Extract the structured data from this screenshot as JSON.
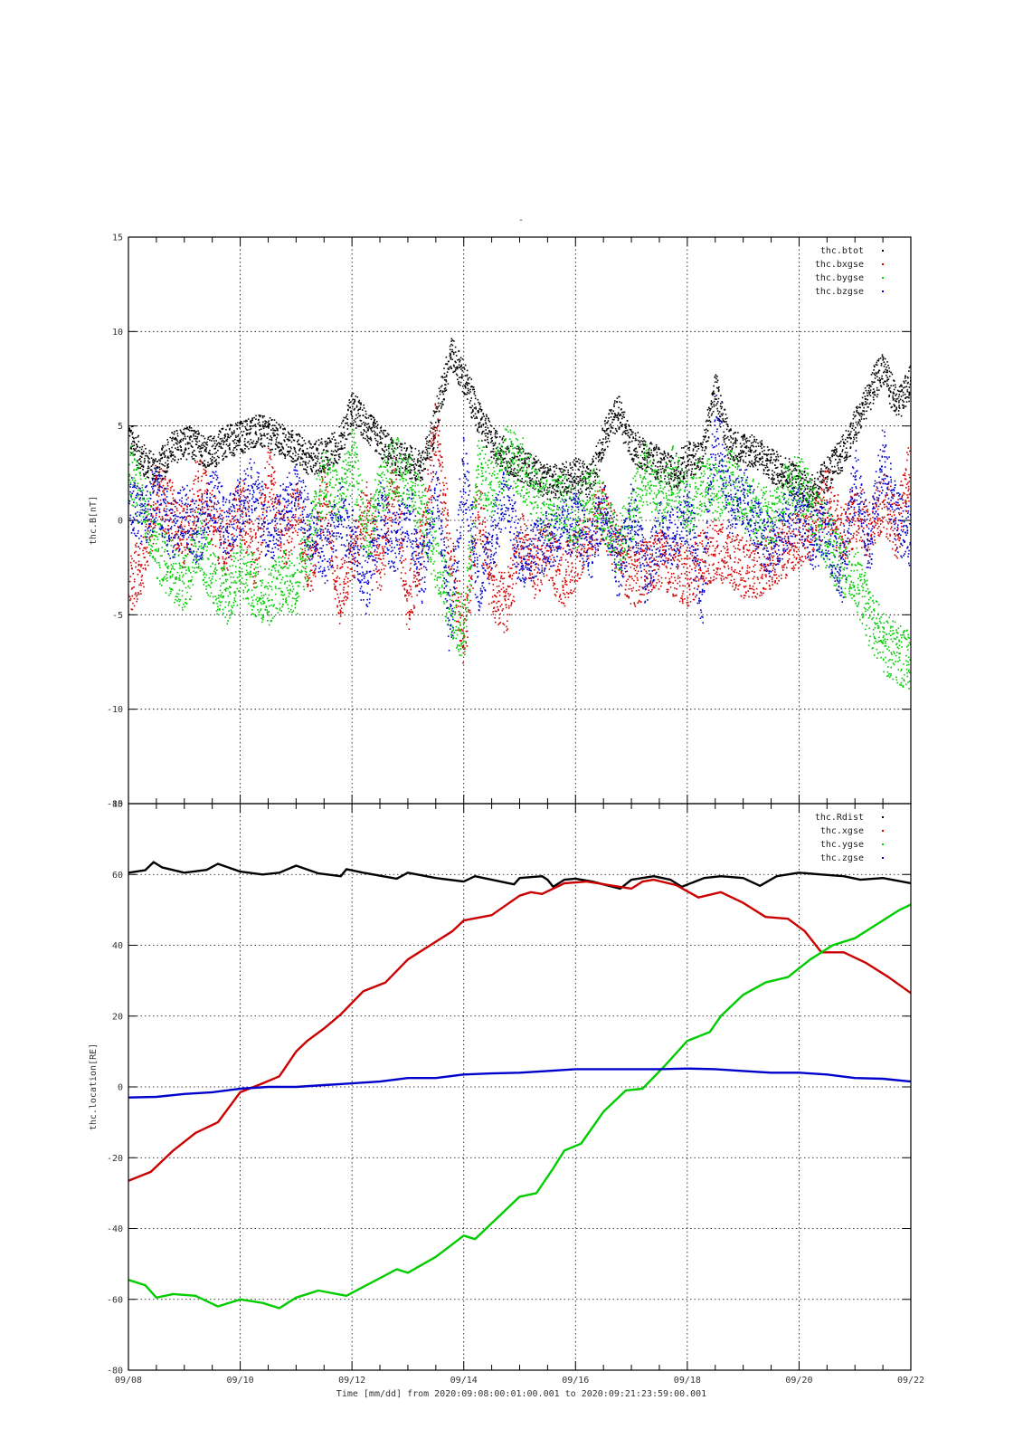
{
  "chart_data": [
    {
      "type": "scatter",
      "title": "-",
      "ylabel": "thc.B[nT]",
      "ylim": [
        -15,
        15
      ],
      "yticks": [
        -15,
        -10,
        -5,
        0,
        5,
        10,
        15
      ],
      "grid": true,
      "legend_placement": "top-right",
      "x_unit": "days since 09/08",
      "series": [
        {
          "name": "thc.btot",
          "color": "#000000",
          "x": [
            0,
            0.25,
            0.5,
            0.75,
            1,
            1.25,
            1.5,
            1.75,
            2,
            2.25,
            2.5,
            2.75,
            3,
            3.25,
            3.5,
            3.75,
            4,
            4.25,
            4.5,
            4.75,
            5,
            5.25,
            5.5,
            5.75,
            6,
            6.25,
            6.5,
            6.75,
            7,
            7.25,
            7.5,
            7.75,
            8,
            8.25,
            8.5,
            8.75,
            9,
            9.25,
            9.5,
            9.75,
            10,
            10.25,
            10.5,
            10.75,
            11,
            11.25,
            11.5,
            11.75,
            12,
            12.25,
            12.5,
            12.75,
            13,
            13.25,
            13.5,
            13.75,
            14
          ],
          "values": [
            4.5,
            3.2,
            2.6,
            3.8,
            4.2,
            3.9,
            3.6,
            4.3,
            4.4,
            4.8,
            4.6,
            4.2,
            3.8,
            3.3,
            3.5,
            4.0,
            6.0,
            5.0,
            4.2,
            3.3,
            3.2,
            2.8,
            5.4,
            9.0,
            7.5,
            5.5,
            4.2,
            3.4,
            3.0,
            2.6,
            2.0,
            2.2,
            2.5,
            2.0,
            4.5,
            5.8,
            4.0,
            3.5,
            3.0,
            2.5,
            3.3,
            3.4,
            7.0,
            4.0,
            3.8,
            3.6,
            2.9,
            2.6,
            2.0,
            1.5,
            2.5,
            3.5,
            5.0,
            6.8,
            8.2,
            6.0,
            7.5
          ]
        },
        {
          "name": "thc.bxgse",
          "color": "#d00000",
          "x": [
            0,
            0.25,
            0.5,
            0.75,
            1,
            1.25,
            1.5,
            1.75,
            2,
            2.25,
            2.5,
            2.75,
            3,
            3.25,
            3.5,
            3.75,
            4,
            4.25,
            4.5,
            4.75,
            5,
            5.25,
            5.5,
            5.75,
            6,
            6.25,
            6.5,
            6.75,
            7,
            7.25,
            7.5,
            7.75,
            8,
            8.25,
            8.5,
            8.75,
            9,
            9.25,
            9.5,
            9.75,
            10,
            10.25,
            10.5,
            10.75,
            11,
            11.25,
            11.5,
            11.75,
            12,
            12.25,
            12.5,
            12.75,
            13,
            13.25,
            13.5,
            13.75,
            14
          ],
          "values": [
            -3.5,
            -2.0,
            1.5,
            0.5,
            -1.0,
            2.0,
            0.0,
            -1.5,
            1.0,
            -2.0,
            2.5,
            -1.0,
            0.5,
            -2.5,
            1.5,
            -4.0,
            -2.0,
            1.0,
            -2.5,
            2.0,
            -4.5,
            -1.0,
            5.0,
            -2.0,
            -6.0,
            1.0,
            -3.5,
            -4.5,
            -1.0,
            -2.5,
            -1.5,
            -3.0,
            -2.0,
            -0.5,
            0.5,
            -1.5,
            -3.0,
            -2.5,
            -2.0,
            -2.5,
            -3.0,
            -2.0,
            -1.5,
            -2.0,
            -2.5,
            -2.5,
            -2.0,
            -1.5,
            -1.0,
            -0.5,
            1.5,
            -1.0,
            0.5,
            -0.5,
            1.0,
            -0.5,
            3.0
          ]
        },
        {
          "name": "thc.bygse",
          "color": "#00cc00",
          "x": [
            0,
            0.25,
            0.5,
            0.75,
            1,
            1.25,
            1.5,
            1.75,
            2,
            2.25,
            2.5,
            2.75,
            3,
            3.25,
            3.5,
            3.75,
            4,
            4.25,
            4.5,
            4.75,
            5,
            5.25,
            5.5,
            5.75,
            6,
            6.25,
            6.5,
            6.75,
            7,
            7.25,
            7.5,
            7.75,
            8,
            8.25,
            8.5,
            8.75,
            9,
            9.25,
            9.5,
            9.75,
            10,
            10.25,
            10.5,
            10.75,
            11,
            11.25,
            11.5,
            11.75,
            12,
            12.25,
            12.5,
            12.75,
            13,
            13.25,
            13.5,
            13.75,
            14
          ],
          "values": [
            2.5,
            1.0,
            -1.5,
            -2.5,
            -3.5,
            -1.0,
            -3.0,
            -4.0,
            -2.5,
            -3.5,
            -4.0,
            -3.0,
            -3.5,
            -1.0,
            2.5,
            1.0,
            3.5,
            -1.0,
            1.5,
            3.0,
            2.0,
            0.5,
            -2.0,
            -4.5,
            -6.0,
            3.0,
            1.5,
            3.5,
            3.0,
            1.5,
            0.5,
            1.0,
            0.0,
            1.5,
            0.5,
            -1.5,
            0.5,
            2.5,
            1.0,
            2.5,
            0.5,
            2.0,
            1.5,
            2.5,
            1.0,
            0.5,
            0.0,
            1.5,
            2.0,
            0.5,
            -1.0,
            -2.5,
            -3.0,
            -5.0,
            -6.5,
            -7.0,
            -7.5
          ]
        },
        {
          "name": "thc.bzgse",
          "color": "#0000cc",
          "x": [
            0,
            0.25,
            0.5,
            0.75,
            1,
            1.25,
            1.5,
            1.75,
            2,
            2.25,
            2.5,
            2.75,
            3,
            3.25,
            3.5,
            3.75,
            4,
            4.25,
            4.5,
            4.75,
            5,
            5.25,
            5.5,
            5.75,
            6,
            6.25,
            6.5,
            6.75,
            7,
            7.25,
            7.5,
            7.75,
            8,
            8.25,
            8.5,
            8.75,
            9,
            9.25,
            9.5,
            9.75,
            10,
            10.25,
            10.5,
            10.75,
            11,
            11.25,
            11.5,
            11.75,
            12,
            12.25,
            12.5,
            12.75,
            13,
            13.25,
            13.5,
            13.75,
            14
          ],
          "values": [
            1.0,
            0.0,
            1.5,
            -0.5,
            0.5,
            -1.0,
            1.5,
            -0.5,
            1.0,
            2.0,
            -1.0,
            0.5,
            1.5,
            -0.5,
            -2.0,
            0.5,
            -1.0,
            -3.5,
            0.5,
            -1.5,
            0.5,
            -3.0,
            2.0,
            -5.5,
            3.0,
            -3.5,
            -1.0,
            1.5,
            -2.0,
            -1.5,
            -1.0,
            -0.5,
            0.0,
            -1.5,
            0.5,
            -2.5,
            0.5,
            -3.0,
            -0.5,
            -1.0,
            0.5,
            -4.0,
            5.5,
            0.5,
            1.5,
            -0.5,
            -1.5,
            0.0,
            0.5,
            -1.0,
            -0.5,
            -3.0,
            2.5,
            -1.5,
            3.5,
            0.0,
            -1.0
          ]
        }
      ]
    },
    {
      "type": "line",
      "title": "",
      "ylabel": "thc.location[RE]",
      "ylim": [
        -80,
        80
      ],
      "yticks": [
        -80,
        -60,
        -40,
        -20,
        0,
        20,
        40,
        60,
        80
      ],
      "grid": true,
      "legend_placement": "top-right",
      "x_unit": "days since 09/08",
      "series": [
        {
          "name": "thc.Rdist",
          "color": "#000000",
          "x": [
            0,
            0.3,
            0.45,
            0.6,
            1.0,
            1.4,
            1.6,
            2.0,
            2.4,
            2.7,
            3.0,
            3.4,
            3.8,
            3.9,
            4.2,
            4.8,
            5.0,
            5.5,
            6.0,
            6.2,
            6.9,
            7.0,
            7.4,
            7.5,
            7.6,
            7.8,
            8.0,
            8.3,
            8.8,
            9.0,
            9.4,
            9.7,
            9.9,
            10.3,
            10.6,
            11.0,
            11.3,
            11.6,
            12.0,
            12.4,
            12.8,
            13.1,
            13.5,
            14
          ],
          "values": [
            60.5,
            61.2,
            63.5,
            62.0,
            60.5,
            61.3,
            63.0,
            60.8,
            60.0,
            60.5,
            62.5,
            60.3,
            59.5,
            61.5,
            60.5,
            58.8,
            60.5,
            59.0,
            58.0,
            59.5,
            57.2,
            59.0,
            59.5,
            58.5,
            56.5,
            58.5,
            58.8,
            58.0,
            56.0,
            58.5,
            59.5,
            58.5,
            56.5,
            59.0,
            59.5,
            59.0,
            56.8,
            59.5,
            60.5,
            60.0,
            59.5,
            58.5,
            59.0,
            57.5
          ]
        },
        {
          "name": "thc.xgse",
          "color": "#cc0000",
          "x": [
            0,
            0.4,
            0.8,
            1.2,
            1.6,
            2.0,
            2.4,
            2.7,
            3.0,
            3.2,
            3.5,
            3.8,
            4.2,
            4.6,
            5.0,
            5.4,
            5.8,
            6.0,
            6.5,
            7.0,
            7.2,
            7.4,
            7.8,
            8.2,
            8.6,
            9.0,
            9.2,
            9.4,
            9.8,
            10.2,
            10.6,
            11.0,
            11.4,
            11.8,
            12.1,
            12.4,
            12.8,
            13.2,
            13.6,
            14
          ],
          "values": [
            -26.5,
            -24.0,
            -18.0,
            -13.0,
            -10.0,
            -1.5,
            1.0,
            3.0,
            10.0,
            13.0,
            16.5,
            20.5,
            27.0,
            29.5,
            36.0,
            40.0,
            44.0,
            47.0,
            48.5,
            54.0,
            55.0,
            54.5,
            57.5,
            58.0,
            57.0,
            56.0,
            58.0,
            58.5,
            57.0,
            53.5,
            55.0,
            52.0,
            48.0,
            47.5,
            44.0,
            38.0,
            38.0,
            35.0,
            31.0,
            26.5
          ]
        },
        {
          "name": "thc.ygse",
          "color": "#00cc00",
          "x": [
            0,
            0.3,
            0.5,
            0.8,
            1.2,
            1.6,
            2.0,
            2.4,
            2.7,
            3.0,
            3.4,
            3.9,
            4.2,
            4.8,
            5.0,
            5.5,
            6.0,
            6.2,
            6.6,
            7.0,
            7.3,
            7.6,
            7.8,
            8.1,
            8.5,
            8.9,
            9.2,
            9.6,
            10.0,
            10.4,
            10.6,
            11.0,
            11.4,
            11.8,
            12.2,
            12.6,
            13.0,
            13.4,
            13.8,
            14
          ],
          "values": [
            -54.5,
            -56.0,
            -59.5,
            -58.5,
            -59.0,
            -62.0,
            -60.0,
            -61.0,
            -62.5,
            -59.5,
            -57.5,
            -59.0,
            -56.5,
            -51.5,
            -52.5,
            -48.0,
            -42.0,
            -43.0,
            -37.0,
            -31.0,
            -30.0,
            -23.0,
            -18.0,
            -16.0,
            -7.0,
            -1.0,
            -0.5,
            6.0,
            13.0,
            15.5,
            20.0,
            26.0,
            29.5,
            31.0,
            36.0,
            40.0,
            42.0,
            46.0,
            50.0,
            51.5
          ]
        },
        {
          "name": "thc.zgse",
          "color": "#0000cc",
          "x": [
            0,
            0.5,
            1.0,
            1.5,
            2.0,
            2.5,
            3.0,
            3.5,
            4.0,
            4.5,
            5.0,
            5.5,
            6.0,
            6.5,
            7.0,
            7.5,
            8.0,
            8.5,
            9.0,
            9.5,
            10.0,
            10.5,
            11.0,
            11.5,
            12.0,
            12.5,
            13.0,
            13.5,
            14
          ],
          "values": [
            -3.0,
            -2.8,
            -2.0,
            -1.5,
            -0.5,
            0.0,
            0.0,
            0.5,
            1.0,
            1.5,
            2.5,
            2.5,
            3.5,
            3.8,
            4.0,
            4.5,
            5.0,
            5.0,
            5.0,
            5.0,
            5.2,
            5.0,
            4.5,
            4.0,
            4.0,
            3.5,
            2.5,
            2.3,
            1.5
          ]
        }
      ]
    }
  ],
  "x_axis": {
    "tick_labels": [
      "09/08",
      "09/10",
      "09/12",
      "09/14",
      "09/16",
      "09/18",
      "09/20",
      "09/22"
    ],
    "xlabel": "Time [mm/dd]  from 2020:09:08:00:01:00.001  to  2020:09:21:23:59:00.001",
    "xlim_days": [
      0,
      14
    ]
  }
}
